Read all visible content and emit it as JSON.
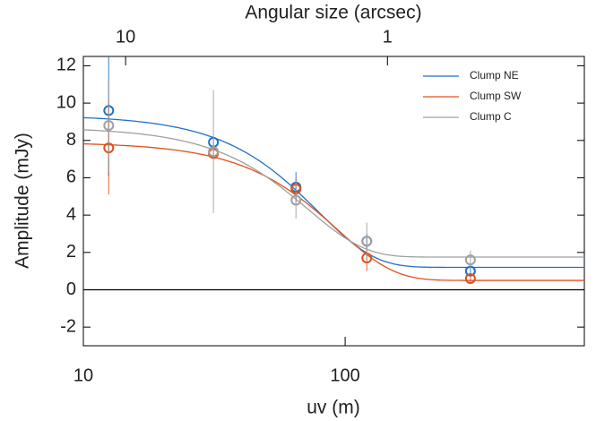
{
  "chart_data": {
    "type": "scatter",
    "title": "Angular size (arcsec)",
    "x_label": "uv (m)",
    "y_label": "Amplitude (mJy)",
    "x_scale": "log",
    "xlim": [
      10,
      820
    ],
    "xticks": [
      10,
      100
    ],
    "x2lim": [
      14.5,
      0.177
    ],
    "x2ticks": [
      10,
      1
    ],
    "ylim": [
      -3,
      12.5
    ],
    "yticks": [
      -2,
      0,
      2,
      4,
      6,
      8,
      10,
      12
    ],
    "reference_line": 0,
    "legend": "upper right",
    "x": [
      12.5,
      31.4,
      64.9,
      121,
      301
    ],
    "series": [
      {
        "name": "Clump NE",
        "color": "#1f6fc5",
        "values": [
          9.6,
          7.9,
          5.5,
          2.6,
          1.0
        ],
        "errors": [
          3.5,
          0.3,
          0.8,
          0.4,
          0.3
        ],
        "fit": {
          "amplitude": 8.15,
          "width": 55.7,
          "offset": 1.2
        }
      },
      {
        "name": "Clump SW",
        "color": "#e0501a",
        "values": [
          7.6,
          7.3,
          5.4,
          1.7,
          0.6
        ],
        "errors": [
          2.5,
          0.3,
          0.5,
          0.7,
          0.2
        ],
        "fit": {
          "amplitude": 7.4,
          "width": 66.1,
          "offset": 0.5
        }
      },
      {
        "name": "Clump C",
        "color": "#a0a0a0",
        "values": [
          8.8,
          7.4,
          4.8,
          2.6,
          1.6
        ],
        "errors": [
          2.5,
          3.3,
          1.0,
          1.0,
          0.5
        ],
        "fit": {
          "amplitude": 6.95,
          "width": 51.1,
          "offset": 1.75
        }
      }
    ]
  }
}
